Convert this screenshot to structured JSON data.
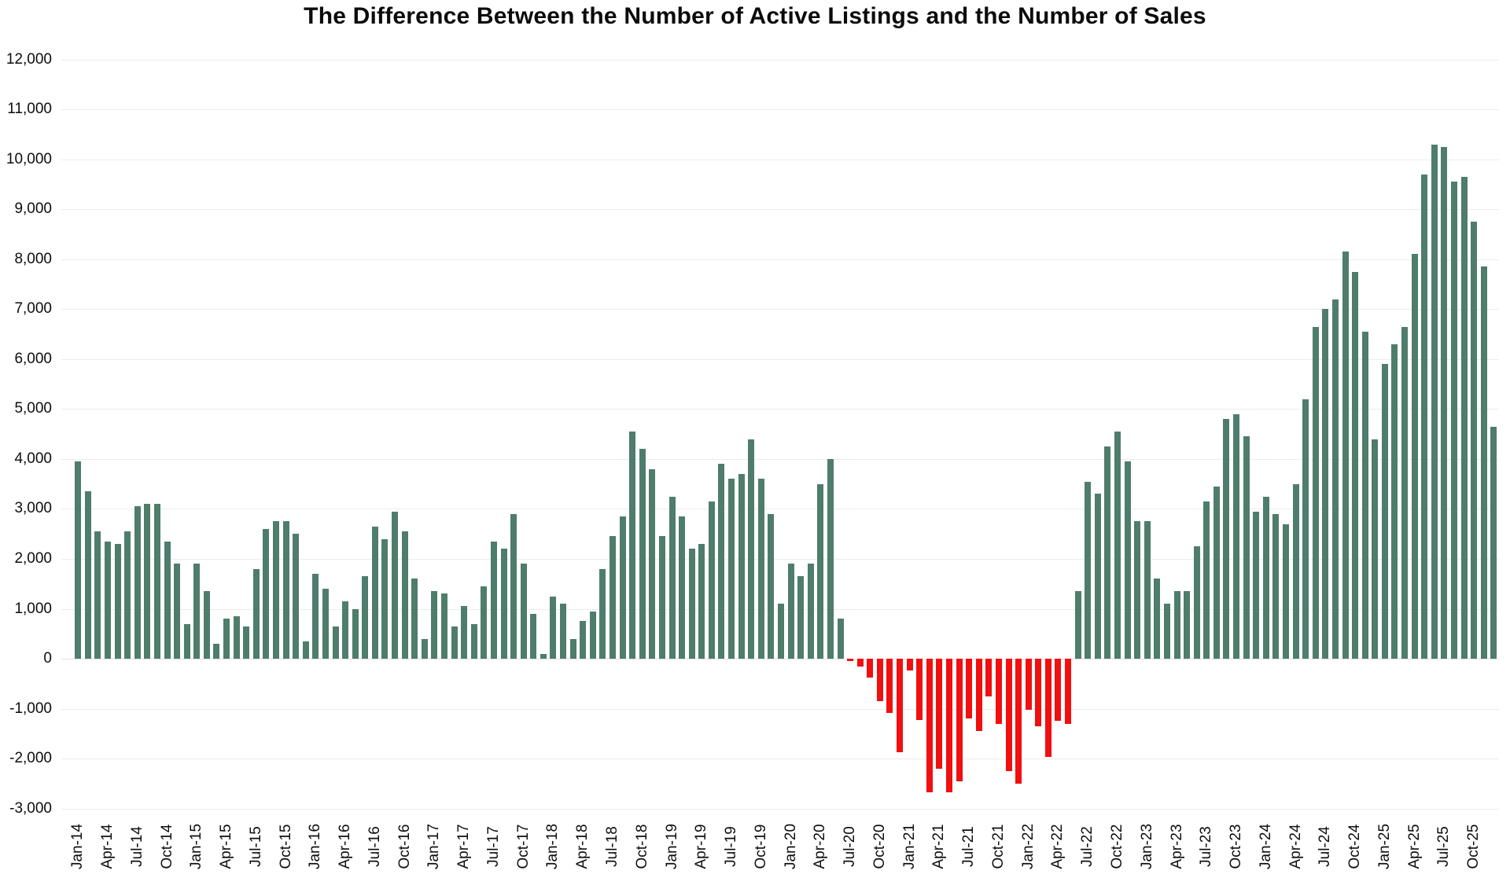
{
  "chart_data": {
    "type": "bar",
    "title": "The Difference Between the Number of Active Listings and the Number of Sales",
    "xlabel": "",
    "ylabel": "",
    "ylim": [
      -3000,
      12000
    ],
    "y_tick_step": 1000,
    "x_tick_interval": 3,
    "grid": true,
    "legend": false,
    "colors": {
      "positive": "#4e7d6b",
      "negative": "#f10f0f",
      "grid": "#ececec",
      "text": "#0d0d0d",
      "background": "#ffffff"
    },
    "x": [
      "Jan-14",
      "Feb-14",
      "Mar-14",
      "Apr-14",
      "May-14",
      "Jun-14",
      "Jul-14",
      "Aug-14",
      "Sep-14",
      "Oct-14",
      "Nov-14",
      "Dec-14",
      "Jan-15",
      "Feb-15",
      "Mar-15",
      "Apr-15",
      "May-15",
      "Jun-15",
      "Jul-15",
      "Aug-15",
      "Sep-15",
      "Oct-15",
      "Nov-15",
      "Dec-15",
      "Jan-16",
      "Feb-16",
      "Mar-16",
      "Apr-16",
      "May-16",
      "Jun-16",
      "Jul-16",
      "Aug-16",
      "Sep-16",
      "Oct-16",
      "Nov-16",
      "Dec-16",
      "Jan-17",
      "Feb-17",
      "Mar-17",
      "Apr-17",
      "May-17",
      "Jun-17",
      "Jul-17",
      "Aug-17",
      "Sep-17",
      "Oct-17",
      "Nov-17",
      "Dec-17",
      "Jan-18",
      "Feb-18",
      "Mar-18",
      "Apr-18",
      "May-18",
      "Jun-18",
      "Jul-18",
      "Aug-18",
      "Sep-18",
      "Oct-18",
      "Nov-18",
      "Dec-18",
      "Jan-19",
      "Feb-19",
      "Mar-19",
      "Apr-19",
      "May-19",
      "Jun-19",
      "Jul-19",
      "Aug-19",
      "Sep-19",
      "Oct-19",
      "Nov-19",
      "Dec-19",
      "Jan-20",
      "Feb-20",
      "Mar-20",
      "Apr-20",
      "May-20",
      "Jun-20",
      "Jul-20",
      "Aug-20",
      "Sep-20",
      "Oct-20",
      "Nov-20",
      "Dec-20",
      "Jan-21",
      "Feb-21",
      "Mar-21",
      "Apr-21",
      "May-21",
      "Jun-21",
      "Jul-21",
      "Aug-21",
      "Sep-21",
      "Oct-21",
      "Nov-21",
      "Dec-21",
      "Jan-22",
      "Feb-22",
      "Mar-22",
      "Apr-22",
      "May-22",
      "Jun-22",
      "Jul-22",
      "Aug-22",
      "Sep-22",
      "Oct-22",
      "Nov-22",
      "Dec-22",
      "Jan-23",
      "Feb-23",
      "Mar-23",
      "Apr-23",
      "May-23",
      "Jun-23",
      "Jul-23",
      "Aug-23",
      "Sep-23",
      "Oct-23",
      "Nov-23",
      "Dec-23",
      "Jan-24",
      "Feb-24",
      "Mar-24",
      "Apr-24",
      "May-24",
      "Jun-24",
      "Jul-24",
      "Aug-24",
      "Sep-24",
      "Oct-24",
      "Nov-24",
      "Dec-24",
      "Jan-25",
      "Feb-25",
      "Mar-25",
      "Apr-25",
      "May-25",
      "Jun-25",
      "Jul-25",
      "Aug-25",
      "Sep-25",
      "Oct-25",
      "Nov-25",
      "Dec-25"
    ],
    "values": [
      3950,
      3350,
      2550,
      2350,
      2300,
      2550,
      3050,
      3100,
      3100,
      2350,
      1900,
      700,
      1900,
      1350,
      300,
      800,
      850,
      650,
      1800,
      2600,
      2750,
      2750,
      2500,
      350,
      1700,
      1400,
      650,
      1150,
      1000,
      1650,
      2650,
      2400,
      2950,
      2550,
      1600,
      400,
      1350,
      1300,
      650,
      1050,
      700,
      1450,
      2350,
      2200,
      2900,
      1900,
      900,
      100,
      1250,
      1100,
      400,
      750,
      950,
      1800,
      2450,
      2850,
      4550,
      4200,
      3800,
      2450,
      3250,
      2850,
      2200,
      2300,
      3150,
      3900,
      3600,
      3700,
      4400,
      3600,
      2900,
      1100,
      1900,
      1650,
      1900,
      3500,
      4000,
      800,
      -50,
      -150,
      -370,
      -850,
      -1080,
      -1880,
      -240,
      -1220,
      -2680,
      -2200,
      -2680,
      -2450,
      -1200,
      -1450,
      -750,
      -1300,
      -2250,
      -2500,
      -1030,
      -1350,
      -1960,
      -1250,
      -1300,
      1350,
      3550,
      3300,
      4250,
      4550,
      3950,
      2750,
      2750,
      1600,
      1100,
      1350,
      1350,
      2250,
      3150,
      3450,
      4800,
      4900,
      4450,
      2950,
      3250,
      2900,
      2700,
      3500,
      5200,
      6650,
      7000,
      7200,
      8150,
      7750,
      6550,
      4400,
      5900,
      6300,
      6650,
      8100,
      9700,
      10300,
      10250,
      9550,
      9650,
      8750,
      7850,
      4650
    ]
  }
}
